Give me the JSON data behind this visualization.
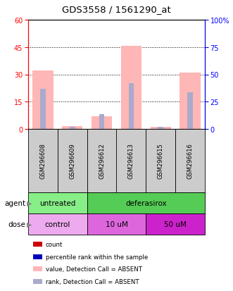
{
  "title": "GDS3558 / 1561290_at",
  "samples": [
    "GSM296608",
    "GSM296609",
    "GSM296612",
    "GSM296613",
    "GSM296615",
    "GSM296616"
  ],
  "pink_bar_heights": [
    32,
    1.5,
    7,
    45.5,
    1,
    31
  ],
  "blue_bar_heights": [
    22,
    1,
    8,
    25,
    1,
    20
  ],
  "pink_color": "#FFB6B6",
  "blue_color": "#AAAACC",
  "left_ylim": [
    0,
    60
  ],
  "right_ylim": [
    0,
    100
  ],
  "left_yticks": [
    0,
    15,
    30,
    45,
    60
  ],
  "right_yticks": [
    0,
    25,
    50,
    75,
    100
  ],
  "right_yticklabels": [
    "0",
    "25",
    "50",
    "75",
    "100%"
  ],
  "grid_values": [
    15,
    30,
    45
  ],
  "agent_color_light": "#88EE88",
  "agent_color_dark": "#55CC55",
  "dose_color_light": "#EEAAEE",
  "dose_color_mid": "#DD66DD",
  "dose_color_dark": "#CC22CC",
  "sample_box_color": "#CCCCCC",
  "legend_items": [
    {
      "label": "count",
      "color": "#CC0000"
    },
    {
      "label": "percentile rank within the sample",
      "color": "#0000BB"
    },
    {
      "label": "value, Detection Call = ABSENT",
      "color": "#FFB6B6"
    },
    {
      "label": "rank, Detection Call = ABSENT",
      "color": "#AAAACC"
    }
  ]
}
